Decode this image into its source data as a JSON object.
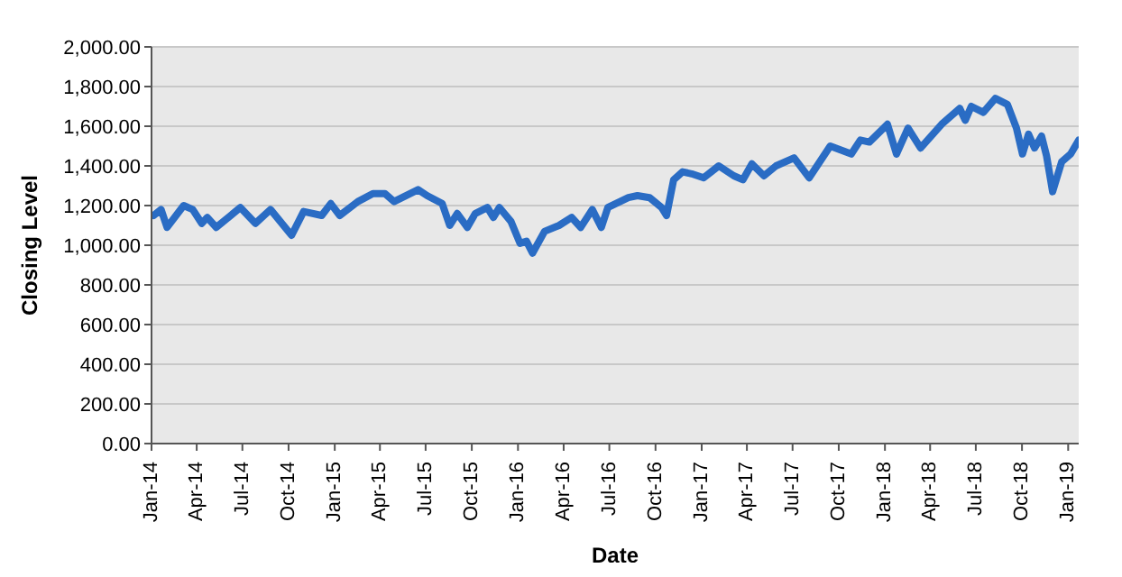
{
  "chart_data": {
    "type": "line",
    "xlabel": "Date",
    "ylabel": "Closing Level",
    "grid": "y",
    "marker": "none",
    "line_style": "solid",
    "xlim": [
      "2014-01-01",
      "2019-01-22"
    ],
    "xticks": [
      {
        "value": "2014-01-01",
        "label": "Jan-14"
      },
      {
        "value": "2014-04-01",
        "label": "Apr-14"
      },
      {
        "value": "2014-07-01",
        "label": "Jul-14"
      },
      {
        "value": "2014-10-01",
        "label": "Oct-14"
      },
      {
        "value": "2015-01-01",
        "label": "Jan-15"
      },
      {
        "value": "2015-04-01",
        "label": "Apr-15"
      },
      {
        "value": "2015-07-01",
        "label": "Jul-15"
      },
      {
        "value": "2015-10-01",
        "label": "Oct-15"
      },
      {
        "value": "2016-01-01",
        "label": "Jan-16"
      },
      {
        "value": "2016-04-01",
        "label": "Apr-16"
      },
      {
        "value": "2016-07-01",
        "label": "Jul-16"
      },
      {
        "value": "2016-10-01",
        "label": "Oct-16"
      },
      {
        "value": "2017-01-01",
        "label": "Jan-17"
      },
      {
        "value": "2017-04-01",
        "label": "Apr-17"
      },
      {
        "value": "2017-07-01",
        "label": "Jul-17"
      },
      {
        "value": "2017-10-01",
        "label": "Oct-17"
      },
      {
        "value": "2018-01-01",
        "label": "Jan-18"
      },
      {
        "value": "2018-04-01",
        "label": "Apr-18"
      },
      {
        "value": "2018-07-01",
        "label": "Jul-18"
      },
      {
        "value": "2018-10-01",
        "label": "Oct-18"
      },
      {
        "value": "2019-01-01",
        "label": "Jan-19"
      }
    ],
    "ylim": [
      0,
      2000
    ],
    "yticks": [
      {
        "value": 0,
        "label": "0.00"
      },
      {
        "value": 200,
        "label": "200.00"
      },
      {
        "value": 400,
        "label": "400.00"
      },
      {
        "value": 600,
        "label": "600.00"
      },
      {
        "value": 800,
        "label": "800.00"
      },
      {
        "value": 1000,
        "label": "1,000.00"
      },
      {
        "value": 1200,
        "label": "1,200.00"
      },
      {
        "value": 1400,
        "label": "1,400.00"
      },
      {
        "value": 1600,
        "label": "1,600.00"
      },
      {
        "value": 1800,
        "label": "1,800.00"
      },
      {
        "value": 2000,
        "label": "2,000.00"
      }
    ],
    "x": [
      "2014-01-05",
      "2014-01-20",
      "2014-02-01",
      "2014-03-06",
      "2014-03-24",
      "2014-04-11",
      "2014-04-22",
      "2014-05-10",
      "2014-06-27",
      "2014-07-27",
      "2014-08-26",
      "2014-10-07",
      "2014-10-31",
      "2014-12-06",
      "2014-12-24",
      "2015-01-11",
      "2015-02-16",
      "2015-03-18",
      "2015-04-11",
      "2015-04-29",
      "2015-06-16",
      "2015-07-04",
      "2015-08-03",
      "2015-08-18",
      "2015-09-02",
      "2015-09-22",
      "2015-10-08",
      "2015-11-01",
      "2015-11-13",
      "2015-11-25",
      "2015-12-18",
      "2016-01-05",
      "2016-01-18",
      "2016-01-30",
      "2016-02-23",
      "2016-03-23",
      "2016-04-17",
      "2016-05-05",
      "2016-05-28",
      "2016-06-15",
      "2016-06-28",
      "2016-08-08",
      "2016-08-26",
      "2016-09-19",
      "2016-10-13",
      "2016-10-23",
      "2016-11-06",
      "2016-11-24",
      "2016-12-12",
      "2017-01-05",
      "2017-02-04",
      "2017-03-06",
      "2017-03-24",
      "2017-04-11",
      "2017-05-05",
      "2017-05-29",
      "2017-07-04",
      "2017-08-03",
      "2017-09-14",
      "2017-10-26",
      "2017-11-13",
      "2017-12-01",
      "2018-01-06",
      "2018-01-24",
      "2018-02-16",
      "2018-03-13",
      "2018-04-24",
      "2018-05-30",
      "2018-06-10",
      "2018-06-22",
      "2018-07-16",
      "2018-08-09",
      "2018-09-02",
      "2018-09-20",
      "2018-10-02",
      "2018-10-14",
      "2018-10-26",
      "2018-11-09",
      "2018-11-19",
      "2018-12-01",
      "2018-12-19",
      "2019-01-06",
      "2019-01-22"
    ],
    "series": [
      {
        "color": "#2a6cc4",
        "values": [
          1150,
          1180,
          1090,
          1200,
          1180,
          1110,
          1140,
          1090,
          1190,
          1110,
          1180,
          1050,
          1170,
          1150,
          1210,
          1150,
          1220,
          1260,
          1260,
          1220,
          1280,
          1250,
          1210,
          1100,
          1160,
          1090,
          1160,
          1190,
          1140,
          1190,
          1120,
          1010,
          1020,
          960,
          1070,
          1100,
          1140,
          1090,
          1180,
          1090,
          1190,
          1240,
          1250,
          1240,
          1190,
          1150,
          1330,
          1370,
          1360,
          1340,
          1400,
          1350,
          1330,
          1410,
          1350,
          1400,
          1440,
          1340,
          1500,
          1460,
          1530,
          1520,
          1610,
          1460,
          1590,
          1490,
          1610,
          1690,
          1630,
          1700,
          1670,
          1740,
          1710,
          1590,
          1460,
          1560,
          1490,
          1550,
          1450,
          1270,
          1420,
          1460,
          1530
        ]
      }
    ]
  }
}
